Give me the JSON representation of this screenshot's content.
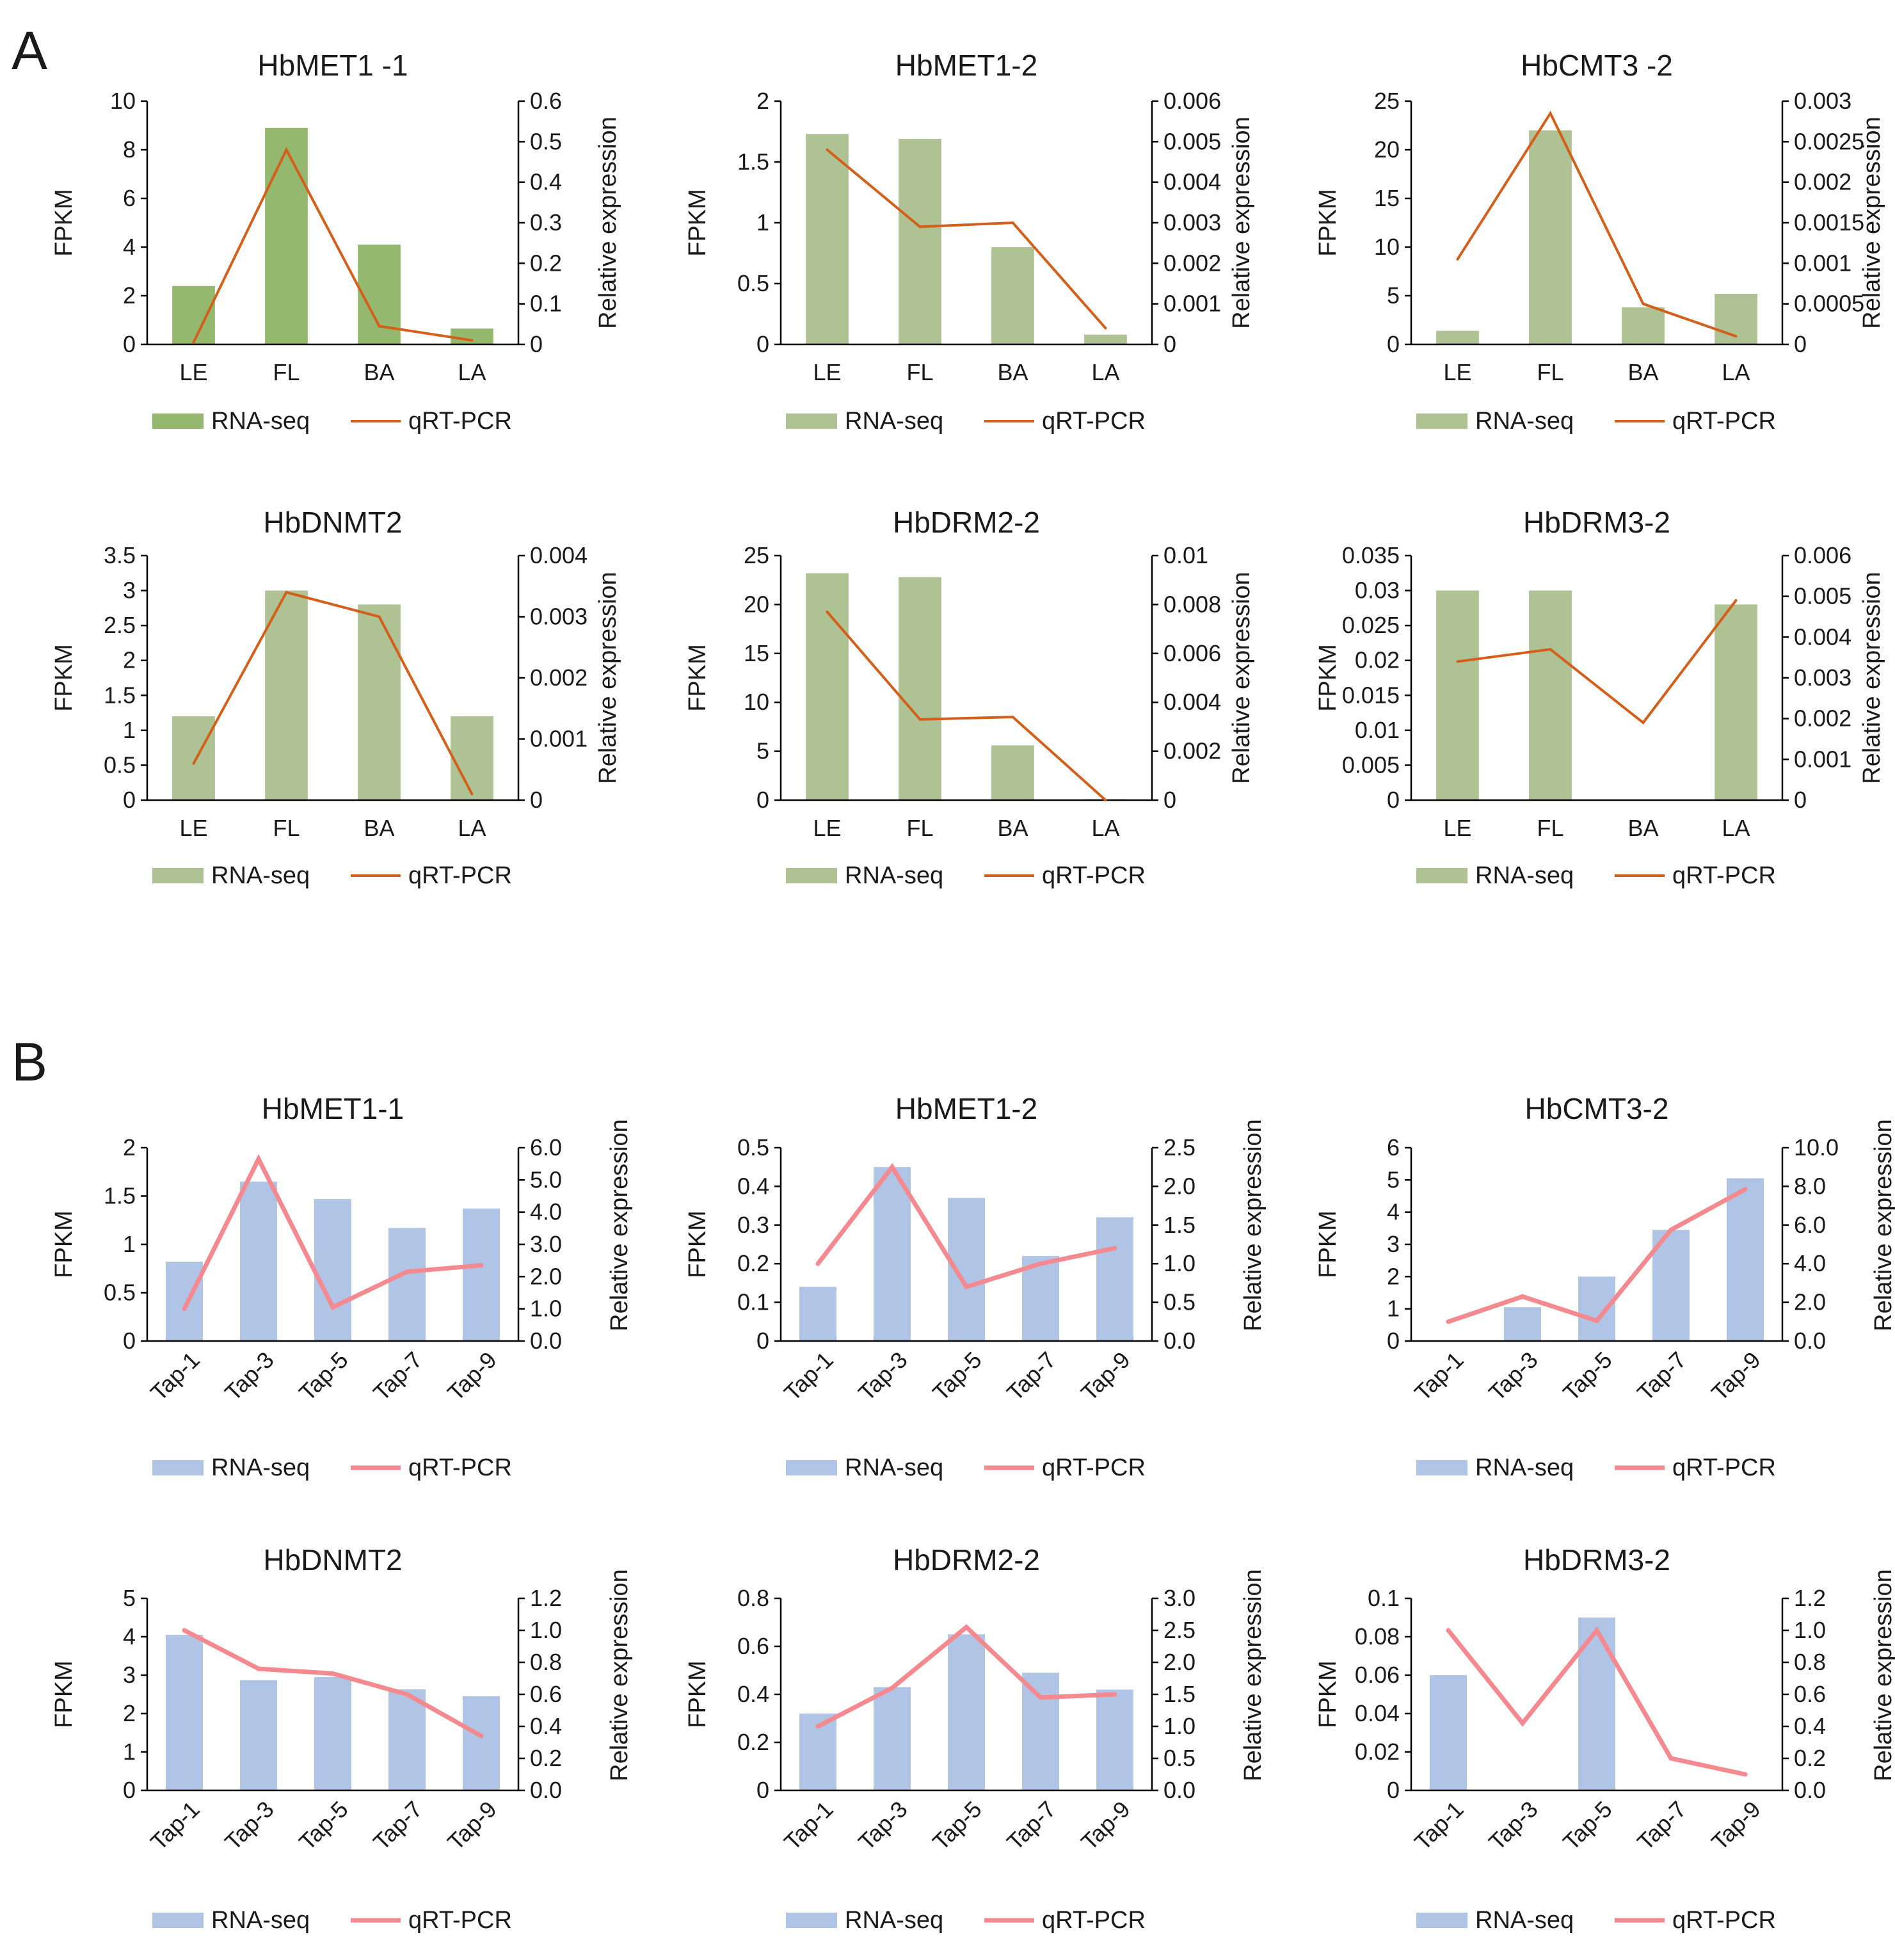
{
  "panels": [
    {
      "label": "A",
      "charts": [
        0,
        1,
        2,
        3,
        4,
        5
      ]
    },
    {
      "label": "B",
      "charts": [
        6,
        7,
        8,
        9,
        10,
        11
      ]
    }
  ],
  "chart_data": [
    {
      "type": "bar",
      "title": "HbMET1 -1",
      "categories": [
        "LE",
        "FL",
        "BA",
        "LA"
      ],
      "series": [
        {
          "name": "RNA-seq",
          "type": "bar",
          "axis": "left",
          "values": [
            2.4,
            8.9,
            4.1,
            0.65
          ],
          "color": "#94b96e"
        },
        {
          "name": "qRT-PCR",
          "type": "line",
          "axis": "right",
          "values": [
            0.005,
            0.48,
            0.045,
            0.01
          ],
          "color": "#d35f1a"
        }
      ],
      "ylabel": "FPKM",
      "y2label": "Relative expression",
      "ylim": [
        0,
        10
      ],
      "y2lim": [
        0,
        0.6
      ],
      "yticks": [
        "0",
        "2",
        "4",
        "6",
        "8",
        "10"
      ],
      "y2ticks": [
        "0",
        "0.1",
        "0.2",
        "0.3",
        "0.4",
        "0.5",
        "0.6"
      ],
      "legend": [
        "RNA-seq",
        "qRT-PCR"
      ],
      "legend_position": "bottom"
    },
    {
      "type": "bar",
      "title": "HbMET1-2",
      "categories": [
        "LE",
        "FL",
        "BA",
        "LA"
      ],
      "series": [
        {
          "name": "RNA-seq",
          "type": "bar",
          "axis": "left",
          "values": [
            1.73,
            1.69,
            0.8,
            0.08
          ],
          "color": "#aec294"
        },
        {
          "name": "qRT-PCR",
          "type": "line",
          "axis": "right",
          "values": [
            0.0048,
            0.0029,
            0.003,
            0.0004
          ],
          "color": "#d35f1a"
        }
      ],
      "ylabel": "FPKM",
      "y2label": "Relative expression",
      "ylim": [
        0,
        2
      ],
      "y2lim": [
        0,
        0.006
      ],
      "yticks": [
        "0",
        "0.5",
        "1",
        "1.5",
        "2"
      ],
      "y2ticks": [
        "0",
        "0.001",
        "0.002",
        "0.003",
        "0.004",
        "0.005",
        "0.006"
      ],
      "legend": [
        "RNA-seq",
        "qRT-PCR"
      ],
      "legend_position": "bottom"
    },
    {
      "type": "bar",
      "title": "HbCMT3 -2",
      "categories": [
        "LE",
        "FL",
        "BA",
        "LA"
      ],
      "series": [
        {
          "name": "RNA-seq",
          "type": "bar",
          "axis": "left",
          "values": [
            1.4,
            22,
            3.8,
            5.2
          ],
          "color": "#aec294"
        },
        {
          "name": "qRT-PCR",
          "type": "line",
          "axis": "right",
          "values": [
            0.00105,
            0.00285,
            0.0005,
            0.0001
          ],
          "color": "#d35f1a"
        }
      ],
      "ylabel": "FPKM",
      "y2label": "Relative expression",
      "ylim": [
        0,
        25
      ],
      "y2lim": [
        0,
        0.003
      ],
      "yticks": [
        "0",
        "5",
        "10",
        "15",
        "20",
        "25"
      ],
      "y2ticks": [
        "0",
        "0.0005",
        "0.001",
        "0.0015",
        "0.002",
        "0.0025",
        "0.003"
      ],
      "legend": [
        "RNA-seq",
        "qRT-PCR"
      ],
      "legend_position": "bottom"
    },
    {
      "type": "bar",
      "title": "HbDNMT2",
      "categories": [
        "LE",
        "FL",
        "BA",
        "LA"
      ],
      "series": [
        {
          "name": "RNA-seq",
          "type": "bar",
          "axis": "left",
          "values": [
            1.2,
            3.0,
            2.8,
            1.2
          ],
          "color": "#aec294"
        },
        {
          "name": "qRT-PCR",
          "type": "line",
          "axis": "right",
          "values": [
            0.0006,
            0.0034,
            0.003,
            0.0001
          ],
          "color": "#d35f1a"
        }
      ],
      "ylabel": "FPKM",
      "y2label": "Relative expression",
      "ylim": [
        0,
        3.5
      ],
      "y2lim": [
        0,
        0.004
      ],
      "yticks": [
        "0",
        "0.5",
        "1",
        "1.5",
        "2",
        "2.5",
        "3",
        "3.5"
      ],
      "y2ticks": [
        "0",
        "0.001",
        "0.002",
        "0.003",
        "0.004"
      ],
      "legend": [
        "RNA-seq",
        "qRT-PCR"
      ],
      "legend_position": "bottom"
    },
    {
      "type": "bar",
      "title": "HbDRM2-2",
      "categories": [
        "LE",
        "FL",
        "BA",
        "LA"
      ],
      "series": [
        {
          "name": "RNA-seq",
          "type": "bar",
          "axis": "left",
          "values": [
            23.2,
            22.8,
            5.6,
            0.1
          ],
          "color": "#aec294"
        },
        {
          "name": "qRT-PCR",
          "type": "line",
          "axis": "right",
          "values": [
            0.0077,
            0.0033,
            0.0034,
            0.0
          ],
          "color": "#d35f1a"
        }
      ],
      "ylabel": "FPKM",
      "y2label": "Relative expression",
      "ylim": [
        0,
        25
      ],
      "y2lim": [
        0,
        0.01
      ],
      "yticks": [
        "0",
        "5",
        "10",
        "15",
        "20",
        "25"
      ],
      "y2ticks": [
        "0",
        "0.002",
        "0.004",
        "0.006",
        "0.008",
        "0.01"
      ],
      "legend": [
        "RNA-seq",
        "qRT-PCR"
      ],
      "legend_position": "bottom"
    },
    {
      "type": "bar",
      "title": "HbDRM3-2",
      "categories": [
        "LE",
        "FL",
        "BA",
        "LA"
      ],
      "series": [
        {
          "name": "RNA-seq",
          "type": "bar",
          "axis": "left",
          "values": [
            0.03,
            0.03,
            0,
            0.028
          ],
          "color": "#aec294"
        },
        {
          "name": "qRT-PCR",
          "type": "line",
          "axis": "right",
          "values": [
            0.0034,
            0.0037,
            0.0019,
            0.0049
          ],
          "color": "#d35f1a"
        }
      ],
      "ylabel": "FPKM",
      "y2label": "Relative expression",
      "ylim": [
        0,
        0.035
      ],
      "y2lim": [
        0,
        0.006
      ],
      "yticks": [
        "0",
        "0.005",
        "0.01",
        "0.015",
        "0.02",
        "0.025",
        "0.03",
        "0.035"
      ],
      "y2ticks": [
        "0",
        "0.001",
        "0.002",
        "0.003",
        "0.004",
        "0.005",
        "0.006"
      ],
      "legend": [
        "RNA-seq",
        "qRT-PCR"
      ],
      "legend_position": "bottom"
    },
    {
      "type": "bar",
      "title": "HbMET1-1",
      "categories": [
        "Tap-1",
        "Tap-3",
        "Tap-5",
        "Tap-7",
        "Tap-9"
      ],
      "series": [
        {
          "name": "RNA-seq",
          "type": "bar",
          "axis": "left",
          "values": [
            0.82,
            1.65,
            1.47,
            1.17,
            1.37
          ],
          "color": "#b0c4e6"
        },
        {
          "name": "qRT-PCR",
          "type": "line",
          "axis": "right",
          "values": [
            1.0,
            5.65,
            1.05,
            2.15,
            2.35
          ],
          "color": "#f48a90"
        }
      ],
      "ylabel": "FPKM",
      "y2label": "Relative expression",
      "ylim": [
        0,
        2
      ],
      "y2lim": [
        0,
        6
      ],
      "yticks": [
        "0",
        "0.5",
        "1",
        "1.5",
        "2"
      ],
      "y2ticks": [
        "0.0",
        "1.0",
        "2.0",
        "3.0",
        "4.0",
        "5.0",
        "6.0"
      ],
      "legend": [
        "RNA-seq",
        "qRT-PCR"
      ],
      "legend_position": "bottom"
    },
    {
      "type": "bar",
      "title": "HbMET1-2",
      "categories": [
        "Tap-1",
        "Tap-3",
        "Tap-5",
        "Tap-7",
        "Tap-9"
      ],
      "series": [
        {
          "name": "RNA-seq",
          "type": "bar",
          "axis": "left",
          "values": [
            0.14,
            0.45,
            0.37,
            0.22,
            0.32
          ],
          "color": "#b0c4e6"
        },
        {
          "name": "qRT-PCR",
          "type": "line",
          "axis": "right",
          "values": [
            1.0,
            2.25,
            0.7,
            1.0,
            1.2
          ],
          "color": "#f48a90"
        }
      ],
      "ylabel": "FPKM",
      "y2label": "Relative expression",
      "ylim": [
        0,
        0.5
      ],
      "y2lim": [
        0,
        2.5
      ],
      "yticks": [
        "0",
        "0.1",
        "0.2",
        "0.3",
        "0.4",
        "0.5"
      ],
      "y2ticks": [
        "0.0",
        "0.5",
        "1.0",
        "1.5",
        "2.0",
        "2.5"
      ],
      "legend": [
        "RNA-seq",
        "qRT-PCR"
      ],
      "legend_position": "bottom"
    },
    {
      "type": "bar",
      "title": "HbCMT3-2",
      "categories": [
        "Tap-1",
        "Tap-3",
        "Tap-5",
        "Tap-7",
        "Tap-9"
      ],
      "series": [
        {
          "name": "RNA-seq",
          "type": "bar",
          "axis": "left",
          "values": [
            0,
            1.05,
            2.0,
            3.45,
            5.05
          ],
          "color": "#b0c4e6"
        },
        {
          "name": "qRT-PCR",
          "type": "line",
          "axis": "right",
          "values": [
            1.0,
            2.3,
            1.05,
            5.75,
            7.85
          ],
          "color": "#f48a90"
        }
      ],
      "ylabel": "FPKM",
      "y2label": "Relative expression",
      "ylim": [
        0,
        6
      ],
      "y2lim": [
        0,
        10
      ],
      "yticks": [
        "0",
        "1",
        "2",
        "3",
        "4",
        "5",
        "6"
      ],
      "y2ticks": [
        "0.0",
        "2.0",
        "4.0",
        "6.0",
        "8.0",
        "10.0"
      ],
      "legend": [
        "RNA-seq",
        "qRT-PCR"
      ],
      "legend_position": "bottom"
    },
    {
      "type": "bar",
      "title": "HbDNMT2",
      "categories": [
        "Tap-1",
        "Tap-3",
        "Tap-5",
        "Tap-7",
        "Tap-9"
      ],
      "series": [
        {
          "name": "RNA-seq",
          "type": "bar",
          "axis": "left",
          "values": [
            4.05,
            2.87,
            2.95,
            2.63,
            2.45
          ],
          "color": "#b0c4e6"
        },
        {
          "name": "qRT-PCR",
          "type": "line",
          "axis": "right",
          "values": [
            1.0,
            0.76,
            0.73,
            0.6,
            0.34
          ],
          "color": "#f48a90"
        }
      ],
      "ylabel": "FPKM",
      "y2label": "Relative expression",
      "ylim": [
        0,
        5
      ],
      "y2lim": [
        0,
        1.2
      ],
      "yticks": [
        "0",
        "1",
        "2",
        "3",
        "4",
        "5"
      ],
      "y2ticks": [
        "0.0",
        "0.2",
        "0.4",
        "0.6",
        "0.8",
        "1.0",
        "1.2"
      ],
      "legend": [
        "RNA-seq",
        "qRT-PCR"
      ],
      "legend_position": "bottom"
    },
    {
      "type": "bar",
      "title": "HbDRM2-2",
      "categories": [
        "Tap-1",
        "Tap-3",
        "Tap-5",
        "Tap-7",
        "Tap-9"
      ],
      "series": [
        {
          "name": "RNA-seq",
          "type": "bar",
          "axis": "left",
          "values": [
            0.32,
            0.43,
            0.65,
            0.49,
            0.42
          ],
          "color": "#b0c4e6"
        },
        {
          "name": "qRT-PCR",
          "type": "line",
          "axis": "right",
          "values": [
            1.0,
            1.6,
            2.55,
            1.45,
            1.5
          ],
          "color": "#f48a90"
        }
      ],
      "ylabel": "FPKM",
      "y2label": "Relative expression",
      "ylim": [
        0,
        0.8
      ],
      "y2lim": [
        0,
        3
      ],
      "yticks": [
        "0",
        "0.2",
        "0.4",
        "0.6",
        "0.8"
      ],
      "y2ticks": [
        "0.0",
        "0.5",
        "1.0",
        "1.5",
        "2.0",
        "2.5",
        "3.0"
      ],
      "legend": [
        "RNA-seq",
        "qRT-PCR"
      ],
      "legend_position": "bottom"
    },
    {
      "type": "bar",
      "title": "HbDRM3-2",
      "categories": [
        "Tap-1",
        "Tap-3",
        "Tap-5",
        "Tap-7",
        "Tap-9"
      ],
      "series": [
        {
          "name": "RNA-seq",
          "type": "bar",
          "axis": "left",
          "values": [
            0.06,
            0,
            0.09,
            0,
            0
          ],
          "color": "#b0c4e6"
        },
        {
          "name": "qRT-PCR",
          "type": "line",
          "axis": "right",
          "values": [
            1.0,
            0.42,
            1.0,
            0.2,
            0.1
          ],
          "color": "#f48a90"
        }
      ],
      "ylabel": "FPKM",
      "y2label": "Relative expression",
      "ylim": [
        0,
        0.1
      ],
      "y2lim": [
        0,
        1.2
      ],
      "yticks": [
        "0",
        "0.02",
        "0.04",
        "0.06",
        "0.08",
        "0.1"
      ],
      "y2ticks": [
        "0.0",
        "0.2",
        "0.4",
        "0.6",
        "0.8",
        "1.0",
        "1.2"
      ],
      "legend": [
        "RNA-seq",
        "qRT-PCR"
      ],
      "legend_position": "bottom"
    }
  ]
}
